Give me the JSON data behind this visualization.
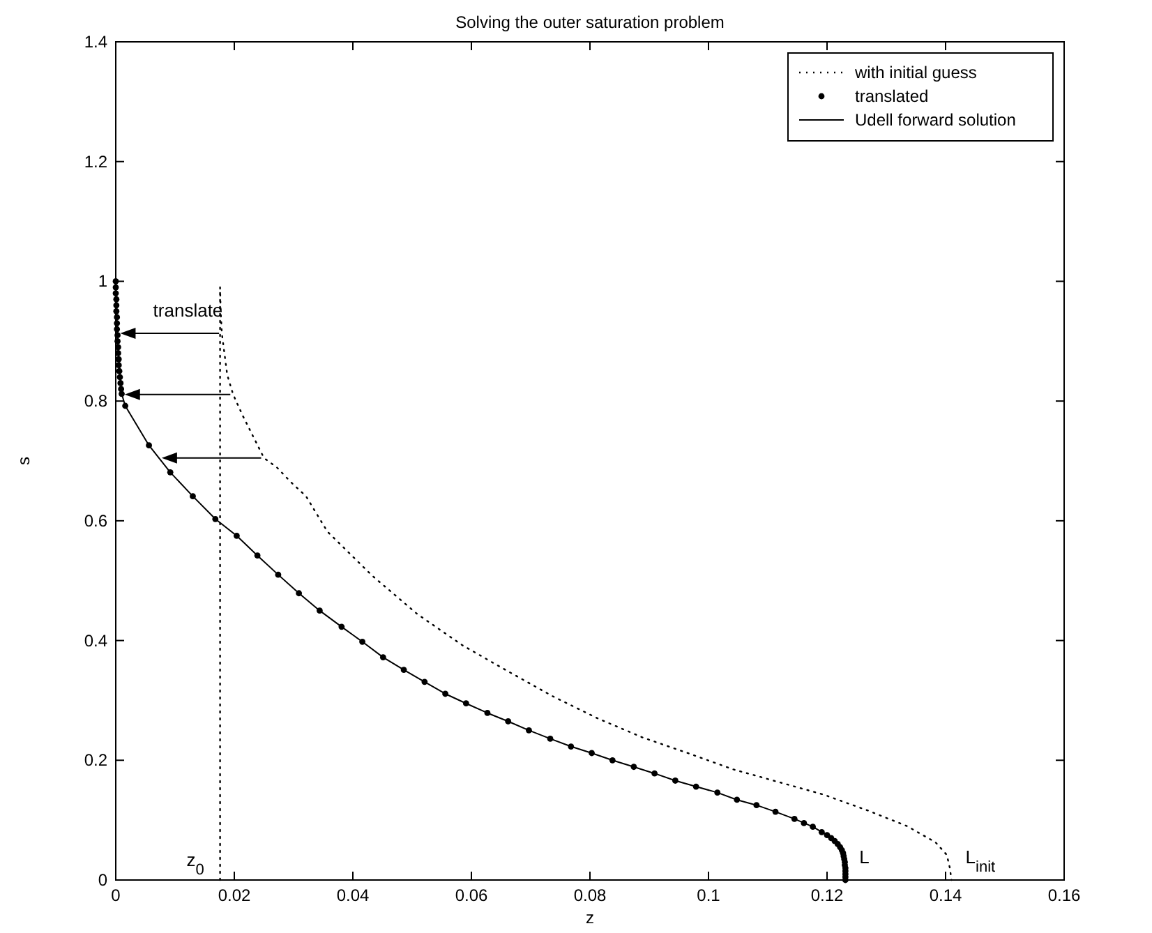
{
  "chart_data": {
    "type": "line",
    "title": "Solving the outer saturation problem",
    "xlabel": "z",
    "ylabel": "s",
    "xlim": [
      0,
      0.16
    ],
    "xticks": [
      0,
      0.02,
      0.04,
      0.06,
      0.08,
      0.1,
      0.12,
      0.14,
      0.16
    ],
    "ylim": [
      0,
      1.4
    ],
    "yticks": [
      0,
      0.2,
      0.4,
      0.6,
      0.8,
      1,
      1.2,
      1.4
    ],
    "grid": false,
    "legend": "top right",
    "series": [
      {
        "name": "with initial guess",
        "line_style": "dotted",
        "marker": "none",
        "color": "#000000",
        "x": [
          0.0176,
          0.0177,
          0.0179,
          0.0188,
          0.0198,
          0.0214,
          0.025,
          0.0272,
          0.0295,
          0.0321,
          0.0357,
          0.0433,
          0.0509,
          0.0585,
          0.0661,
          0.0737,
          0.0813,
          0.0889,
          0.0965,
          0.1041,
          0.1117,
          0.1193,
          0.1269,
          0.1335,
          0.1383,
          0.1402,
          0.1407,
          0.141
        ],
        "values": [
          0.99,
          0.95,
          0.913,
          0.844,
          0.811,
          0.776,
          0.705,
          0.689,
          0.665,
          0.641,
          0.582,
          0.508,
          0.444,
          0.392,
          0.349,
          0.307,
          0.27,
          0.238,
          0.212,
          0.185,
          0.164,
          0.143,
          0.116,
          0.09,
          0.063,
          0.042,
          0.021,
          0
        ]
      },
      {
        "line_style": "dotted",
        "marker": "none",
        "color": "#000000",
        "x": [
          0.0176,
          0.0176
        ],
        "values": [
          0,
          0.99
        ]
      },
      {
        "name": "translated",
        "type": "scatter",
        "marker": "circle",
        "color": "#000000",
        "x": [
          0,
          0,
          0,
          0.0001,
          0.0001,
          0.0001,
          0.0002,
          0.0002,
          0.0002,
          0.0003,
          0.0003,
          0.0004,
          0.0004,
          0.0005,
          0.0005,
          0.0006,
          0.0007,
          0.0008,
          0.0009,
          0.001,
          0.0016,
          0.0056,
          0.0092,
          0.013,
          0.0168,
          0.0204,
          0.0239,
          0.0274,
          0.0309,
          0.0344,
          0.0381,
          0.0416,
          0.0451,
          0.0486,
          0.0521,
          0.0556,
          0.0591,
          0.0627,
          0.0662,
          0.0697,
          0.0733,
          0.0768,
          0.0803,
          0.0838,
          0.0874,
          0.0909,
          0.0944,
          0.0979,
          0.1015,
          0.1048,
          0.1081,
          0.1113,
          0.1145,
          0.1161,
          0.1176,
          0.1191,
          0.12,
          0.1207,
          0.1213,
          0.1218,
          0.1222,
          0.1225,
          0.1227,
          0.1228,
          0.1229,
          0.123,
          0.123,
          0.1231,
          0.1231,
          0.1231,
          0.1231,
          0.1231
        ],
        "values": [
          1,
          0.99,
          0.98,
          0.97,
          0.96,
          0.95,
          0.94,
          0.93,
          0.92,
          0.91,
          0.9,
          0.89,
          0.88,
          0.87,
          0.86,
          0.85,
          0.84,
          0.83,
          0.82,
          0.812,
          0.792,
          0.726,
          0.681,
          0.641,
          0.603,
          0.575,
          0.542,
          0.51,
          0.479,
          0.45,
          0.423,
          0.398,
          0.372,
          0.351,
          0.331,
          0.311,
          0.295,
          0.279,
          0.265,
          0.25,
          0.236,
          0.223,
          0.212,
          0.2,
          0.189,
          0.178,
          0.166,
          0.156,
          0.146,
          0.134,
          0.125,
          0.114,
          0.102,
          0.095,
          0.089,
          0.08,
          0.075,
          0.07,
          0.065,
          0.06,
          0.055,
          0.05,
          0.045,
          0.04,
          0.035,
          0.03,
          0.025,
          0.02,
          0.015,
          0.01,
          0.005,
          0
        ]
      },
      {
        "name": "Udell forward solution",
        "line_style": "solid",
        "marker": "none",
        "color": "#000000",
        "x": [
          0,
          0.0002,
          0.0005,
          0.001,
          0.0016,
          0.0056,
          0.0092,
          0.013,
          0.0168,
          0.0204,
          0.0239,
          0.0274,
          0.0309,
          0.0344,
          0.0381,
          0.0416,
          0.0451,
          0.0486,
          0.0521,
          0.0556,
          0.0591,
          0.0627,
          0.0662,
          0.0697,
          0.0733,
          0.0768,
          0.0803,
          0.0838,
          0.0874,
          0.0909,
          0.0944,
          0.0979,
          0.1015,
          0.1048,
          0.1081,
          0.1113,
          0.1145,
          0.1176,
          0.12,
          0.1213,
          0.1222,
          0.1227,
          0.1229,
          0.1231,
          0.1231
        ],
        "values": [
          1,
          0.93,
          0.87,
          0.812,
          0.792,
          0.726,
          0.681,
          0.641,
          0.603,
          0.575,
          0.542,
          0.51,
          0.479,
          0.45,
          0.423,
          0.398,
          0.372,
          0.351,
          0.331,
          0.311,
          0.295,
          0.279,
          0.265,
          0.25,
          0.236,
          0.223,
          0.212,
          0.2,
          0.189,
          0.178,
          0.166,
          0.156,
          0.146,
          0.134,
          0.125,
          0.114,
          0.102,
          0.089,
          0.075,
          0.065,
          0.055,
          0.045,
          0.035,
          0.02,
          0
        ]
      }
    ],
    "annotations": [
      {
        "text": "translate",
        "x": 0.0176,
        "y": 0.95
      },
      {
        "text": "z$_{0}$",
        "x": 0.0176,
        "y": 0
      },
      {
        "text": "L",
        "x": 0.1231,
        "y": 0
      },
      {
        "text": "L$_{init}$",
        "x": 0.141,
        "y": 0
      }
    ]
  }
}
